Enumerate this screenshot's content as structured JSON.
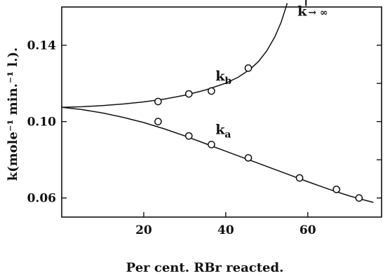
{
  "chart_data": {
    "type": "line",
    "xlabel": "Per cent. RBr reacted.",
    "ylabel": "k(mole⁻¹ min.⁻¹ l.).",
    "xlim": [
      0,
      78
    ],
    "ylim": [
      0.05,
      0.16
    ],
    "x_ticks": [
      20,
      40,
      60
    ],
    "y_ticks": [
      0.06,
      0.1,
      0.14
    ],
    "x_tick_labels": [
      "20",
      "40",
      "60"
    ],
    "y_tick_labels": [
      "0.06",
      "0.10",
      "0.14"
    ],
    "grid": false,
    "series": [
      {
        "name": "kb",
        "label_main": "k",
        "label_sub": "b",
        "points": [
          [
            23.5,
            0.1105
          ],
          [
            31,
            0.1145
          ],
          [
            36.5,
            0.116
          ],
          [
            45.5,
            0.128
          ]
        ],
        "curve": [
          [
            0,
            0.1075
          ],
          [
            5,
            0.1078
          ],
          [
            10,
            0.1084
          ],
          [
            15,
            0.1092
          ],
          [
            20,
            0.1103
          ],
          [
            25,
            0.1118
          ],
          [
            30,
            0.1138
          ],
          [
            35,
            0.1165
          ],
          [
            40,
            0.1201
          ],
          [
            43,
            0.1232
          ],
          [
            46,
            0.1275
          ],
          [
            48,
            0.1315
          ],
          [
            50,
            0.137
          ],
          [
            52,
            0.1445
          ],
          [
            53.5,
            0.152
          ],
          [
            55,
            0.162
          ]
        ]
      },
      {
        "name": "ka",
        "label_main": "k",
        "label_sub": "a",
        "points": [
          [
            23.5,
            0.1
          ],
          [
            31,
            0.0925
          ],
          [
            36.5,
            0.088
          ],
          [
            45.5,
            0.081
          ],
          [
            58,
            0.0705
          ],
          [
            67,
            0.0645
          ],
          [
            72.5,
            0.06
          ]
        ],
        "curve": [
          [
            0,
            0.1075
          ],
          [
            5,
            0.1063
          ],
          [
            10,
            0.1045
          ],
          [
            15,
            0.1022
          ],
          [
            20,
            0.0995
          ],
          [
            25,
            0.0962
          ],
          [
            30,
            0.0925
          ],
          [
            35,
            0.0885
          ],
          [
            40,
            0.0845
          ],
          [
            45,
            0.0805
          ],
          [
            50,
            0.0765
          ],
          [
            55,
            0.0725
          ],
          [
            60,
            0.0685
          ],
          [
            65,
            0.0647
          ],
          [
            70,
            0.0612
          ],
          [
            74,
            0.0588
          ],
          [
            76,
            0.0577
          ]
        ]
      }
    ],
    "annotation": {
      "main": "k",
      "arrow": "↑",
      "suffix": "→ ∞",
      "x": 57.5,
      "y": 0.1555
    }
  }
}
